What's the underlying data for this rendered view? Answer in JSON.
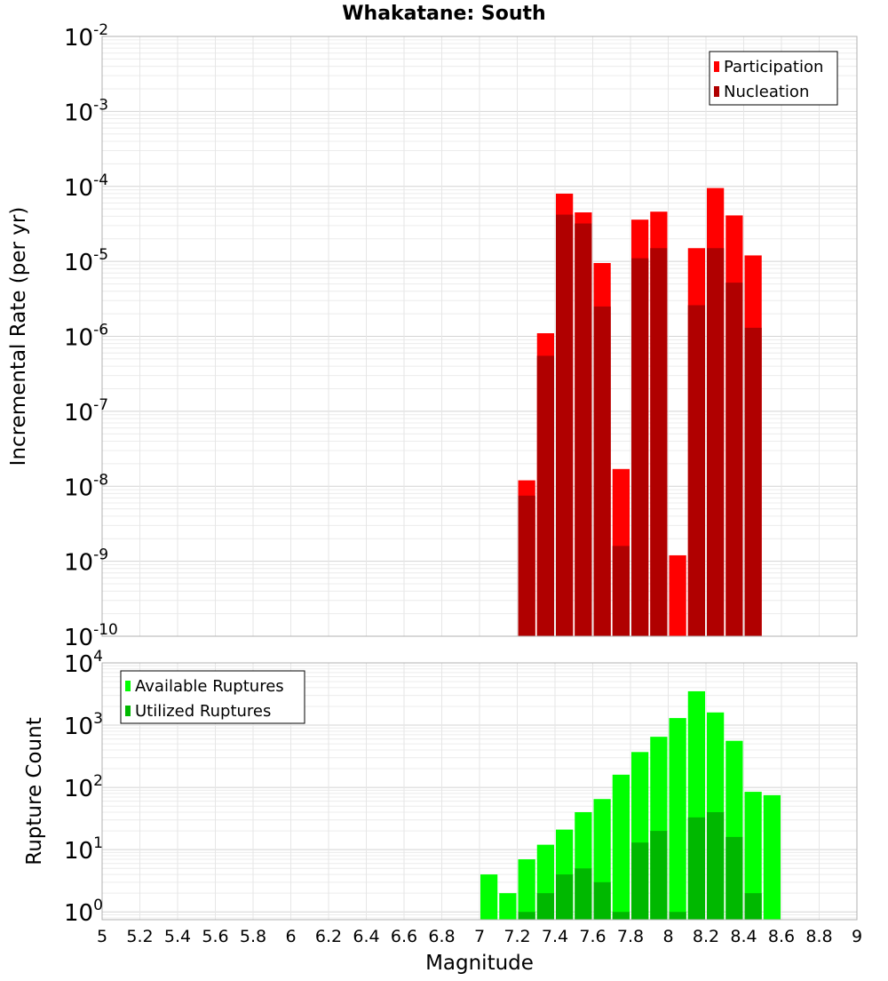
{
  "chart_data": {
    "title": "Whakatane: South",
    "xlabel": "Magnitude",
    "xlim": [
      5,
      9
    ],
    "x_ticks": [
      "5",
      "5.2",
      "5.4",
      "5.6",
      "5.8",
      "6",
      "6.2",
      "6.4",
      "6.6",
      "6.8",
      "7",
      "7.2",
      "7.4",
      "7.6",
      "7.8",
      "8",
      "8.2",
      "8.4",
      "8.6",
      "8.8",
      "9"
    ],
    "bin_width": 0.1,
    "panels": [
      {
        "type": "bar",
        "ylabel": "Incremental Rate (per yr)",
        "yscale": "log",
        "ylim": [
          1e-10,
          0.01
        ],
        "y_tick_exponents": [
          -10,
          -9,
          -8,
          -7,
          -6,
          -5,
          -4,
          -3,
          -2
        ],
        "grid": true,
        "legend_position": "top-right",
        "series": [
          {
            "name": "Participation",
            "color": "#ff0000",
            "x": [
              7.25,
              7.35,
              7.45,
              7.55,
              7.65,
              7.75,
              7.85,
              7.95,
              8.05,
              8.15,
              8.25,
              8.35,
              8.45
            ],
            "values": [
              1.2e-08,
              1.1e-06,
              8e-05,
              4.5e-05,
              9.5e-06,
              1.7e-08,
              3.6e-05,
              4.6e-05,
              1.2e-09,
              1.5e-05,
              9.5e-05,
              4.1e-05,
              1.2e-05
            ]
          },
          {
            "name": "Nucleation",
            "color": "#b00000",
            "x": [
              7.25,
              7.35,
              7.45,
              7.55,
              7.65,
              7.75,
              7.85,
              7.95,
              8.15,
              8.25,
              8.35,
              8.45
            ],
            "values": [
              7.5e-09,
              5.5e-07,
              4.2e-05,
              3.2e-05,
              2.5e-06,
              1.6e-09,
              1.1e-05,
              1.5e-05,
              2.6e-06,
              1.5e-05,
              5.2e-06,
              1.3e-06
            ]
          }
        ]
      },
      {
        "type": "bar",
        "ylabel": "Rupture Count",
        "yscale": "log",
        "ylim": [
          0.75,
          10000
        ],
        "y_tick_exponents": [
          0,
          1,
          2,
          3,
          4
        ],
        "grid": true,
        "legend_position": "top-left",
        "series": [
          {
            "name": "Available Ruptures",
            "color": "#00ff00",
            "x": [
              7.05,
              7.15,
              7.25,
              7.35,
              7.45,
              7.55,
              7.65,
              7.75,
              7.85,
              7.95,
              8.05,
              8.15,
              8.25,
              8.35,
              8.45,
              8.55
            ],
            "values": [
              4,
              2,
              7,
              12,
              21,
              40,
              65,
              160,
              370,
              650,
              1300,
              3500,
              1600,
              560,
              85,
              75
            ]
          },
          {
            "name": "Utilized Ruptures",
            "color": "#00b800",
            "x": [
              7.25,
              7.35,
              7.45,
              7.55,
              7.65,
              7.75,
              7.85,
              7.95,
              8.05,
              8.15,
              8.25,
              8.35,
              8.45
            ],
            "values": [
              1,
              2,
              4,
              5,
              3,
              1,
              13,
              20,
              1,
              33,
              40,
              16,
              2
            ]
          }
        ]
      }
    ]
  }
}
